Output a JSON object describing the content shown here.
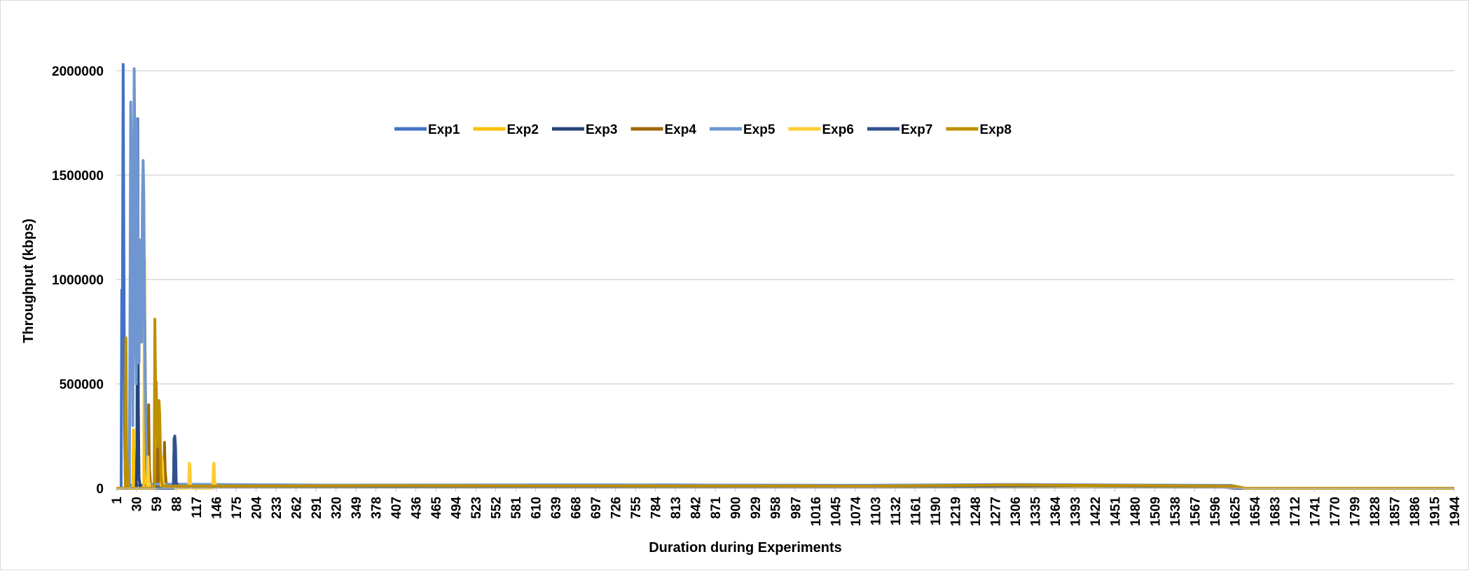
{
  "chart_data": {
    "type": "line",
    "title": "",
    "xlabel": "Duration during Experiments",
    "ylabel": "Throughput (kbps)",
    "ylim": [
      0,
      2000000
    ],
    "yticks": [
      0,
      500000,
      1000000,
      1500000,
      2000000
    ],
    "ytick_labels": [
      "0",
      "500000",
      "1000000",
      "1500000",
      "2000000"
    ],
    "xlim": [
      1,
      1944
    ],
    "xtick_labels": [
      "1",
      "30",
      "59",
      "88",
      "117",
      "146",
      "175",
      "204",
      "233",
      "262",
      "291",
      "320",
      "349",
      "378",
      "407",
      "436",
      "465",
      "494",
      "523",
      "552",
      "581",
      "610",
      "639",
      "668",
      "697",
      "726",
      "755",
      "784",
      "813",
      "842",
      "871",
      "900",
      "929",
      "958",
      "987",
      "1016",
      "1045",
      "1074",
      "1103",
      "1132",
      "1161",
      "1190",
      "1219",
      "1248",
      "1277",
      "1306",
      "1335",
      "1364",
      "1393",
      "1422",
      "1451",
      "1480",
      "1509",
      "1538",
      "1567",
      "1596",
      "1625",
      "1654",
      "1683",
      "1712",
      "1741",
      "1770",
      "1799",
      "1828",
      "1857",
      "1886",
      "1915",
      "1944"
    ],
    "grid": "horizontal",
    "legend_position": "top-center",
    "series": [
      {
        "name": "Exp1",
        "color": "#4472C4",
        "points": [
          [
            1,
            0
          ],
          [
            8,
            0
          ],
          [
            9,
            950000
          ],
          [
            10,
            940000
          ],
          [
            11,
            2030000
          ],
          [
            12,
            1160000
          ],
          [
            13,
            300000
          ],
          [
            14,
            50000
          ],
          [
            16,
            20000
          ],
          [
            20,
            15000
          ],
          [
            200,
            12000
          ],
          [
            400,
            14000
          ],
          [
            600,
            12000
          ],
          [
            800,
            16000
          ],
          [
            1000,
            13000
          ],
          [
            1200,
            15000
          ],
          [
            1400,
            14000
          ],
          [
            1550,
            12000
          ],
          [
            1620,
            13000
          ],
          [
            1640,
            0
          ],
          [
            1944,
            0
          ]
        ]
      },
      {
        "name": "Exp2",
        "color": "#FFC000",
        "points": [
          [
            1,
            0
          ],
          [
            25,
            0
          ],
          [
            26,
            280000
          ],
          [
            27,
            60000
          ],
          [
            29,
            0
          ],
          [
            41,
            0
          ],
          [
            42,
            1100000
          ],
          [
            43,
            600000
          ],
          [
            44,
            100000
          ],
          [
            46,
            10000
          ],
          [
            300,
            10000
          ],
          [
            600,
            12000
          ],
          [
            900,
            11000
          ],
          [
            1200,
            12000
          ],
          [
            1500,
            10000
          ],
          [
            1610,
            9000
          ],
          [
            1630,
            0
          ],
          [
            1944,
            0
          ]
        ]
      },
      {
        "name": "Exp3",
        "color": "#264478",
        "points": [
          [
            1,
            0
          ],
          [
            30,
            0
          ],
          [
            31,
            200000
          ],
          [
            32,
            1770000
          ],
          [
            33,
            400000
          ],
          [
            34,
            50000
          ],
          [
            36,
            0
          ],
          [
            84,
            0
          ],
          [
            85,
            240000
          ],
          [
            86,
            200000
          ],
          [
            87,
            30000
          ],
          [
            89,
            8000
          ],
          [
            400,
            9000
          ],
          [
            800,
            8000
          ],
          [
            1200,
            10000
          ],
          [
            1620,
            9000
          ],
          [
            1630,
            0
          ],
          [
            1944,
            0
          ]
        ]
      },
      {
        "name": "Exp4",
        "color": "#9E6800",
        "points": [
          [
            1,
            0
          ],
          [
            47,
            0
          ],
          [
            48,
            400000
          ],
          [
            49,
            100000
          ],
          [
            51,
            0
          ],
          [
            60,
            0
          ],
          [
            61,
            300000
          ],
          [
            62,
            100000
          ],
          [
            64,
            0
          ],
          [
            70,
            0
          ],
          [
            71,
            220000
          ],
          [
            72,
            80000
          ],
          [
            74,
            5000
          ],
          [
            500,
            7000
          ],
          [
            1000,
            8000
          ],
          [
            1500,
            7000
          ],
          [
            1620,
            6000
          ],
          [
            1630,
            0
          ],
          [
            1944,
            0
          ]
        ]
      },
      {
        "name": "Exp5",
        "color": "#6F96D1",
        "points": [
          [
            1,
            0
          ],
          [
            20,
            0
          ],
          [
            21,
            900000
          ],
          [
            22,
            1850000
          ],
          [
            23,
            1500000
          ],
          [
            24,
            900000
          ],
          [
            25,
            300000
          ],
          [
            26,
            1200000
          ],
          [
            27,
            2010000
          ],
          [
            28,
            1600000
          ],
          [
            29,
            800000
          ],
          [
            30,
            500000
          ],
          [
            31,
            1770000
          ],
          [
            32,
            1300000
          ],
          [
            33,
            800000
          ],
          [
            34,
            600000
          ],
          [
            35,
            1190000
          ],
          [
            36,
            1000000
          ],
          [
            37,
            900000
          ],
          [
            38,
            700000
          ],
          [
            39,
            1400000
          ],
          [
            40,
            1570000
          ],
          [
            41,
            1400000
          ],
          [
            42,
            900000
          ],
          [
            43,
            580000
          ],
          [
            44,
            300000
          ],
          [
            45,
            100000
          ],
          [
            47,
            20000
          ],
          [
            300,
            15000
          ],
          [
            700,
            16000
          ],
          [
            1100,
            14000
          ],
          [
            1300,
            18000
          ],
          [
            1500,
            15000
          ],
          [
            1620,
            14000
          ],
          [
            1630,
            0
          ],
          [
            1944,
            0
          ]
        ]
      },
      {
        "name": "Exp6",
        "color": "#FFCD33",
        "points": [
          [
            1,
            0
          ],
          [
            46,
            0
          ],
          [
            47,
            150000
          ],
          [
            48,
            40000
          ],
          [
            50,
            0
          ],
          [
            66,
            0
          ],
          [
            67,
            150000
          ],
          [
            68,
            120000
          ],
          [
            69,
            30000
          ],
          [
            71,
            0
          ],
          [
            106,
            0
          ],
          [
            107,
            120000
          ],
          [
            108,
            110000
          ],
          [
            109,
            10000
          ],
          [
            111,
            0
          ],
          [
            141,
            0
          ],
          [
            142,
            110000
          ],
          [
            143,
            120000
          ],
          [
            144,
            30000
          ],
          [
            146,
            8000
          ],
          [
            600,
            9000
          ],
          [
            1100,
            8000
          ],
          [
            1600,
            9000
          ],
          [
            1625,
            0
          ],
          [
            1944,
            0
          ]
        ]
      },
      {
        "name": "Exp7",
        "color": "#2F528F",
        "points": [
          [
            1,
            0
          ],
          [
            84,
            0
          ],
          [
            85,
            200000
          ],
          [
            86,
            250000
          ],
          [
            87,
            200000
          ],
          [
            88,
            30000
          ],
          [
            90,
            5000
          ],
          [
            500,
            6000
          ],
          [
            1000,
            7000
          ],
          [
            1400,
            12000
          ],
          [
            1600,
            8000
          ],
          [
            1625,
            0
          ],
          [
            1944,
            0
          ]
        ]
      },
      {
        "name": "Exp8",
        "color": "#BF9000",
        "points": [
          [
            1,
            0
          ],
          [
            14,
            0
          ],
          [
            15,
            720000
          ],
          [
            16,
            200000
          ],
          [
            18,
            0
          ],
          [
            56,
            0
          ],
          [
            57,
            810000
          ],
          [
            58,
            500000
          ],
          [
            59,
            510000
          ],
          [
            60,
            300000
          ],
          [
            61,
            200000
          ],
          [
            62,
            350000
          ],
          [
            63,
            420000
          ],
          [
            64,
            360000
          ],
          [
            65,
            200000
          ],
          [
            66,
            50000
          ],
          [
            68,
            10000
          ],
          [
            400,
            12000
          ],
          [
            800,
            11000
          ],
          [
            1100,
            10000
          ],
          [
            1300,
            15000
          ],
          [
            1500,
            12000
          ],
          [
            1625,
            10000
          ],
          [
            1640,
            0
          ],
          [
            1944,
            0
          ]
        ]
      }
    ]
  }
}
